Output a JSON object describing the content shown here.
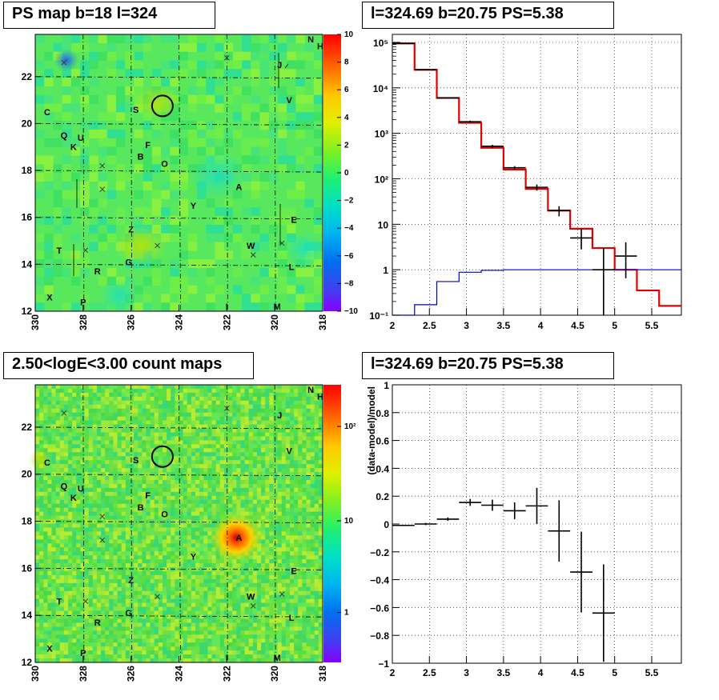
{
  "panels": {
    "tl_title": "PS map b=18 l=324",
    "tr_title": "l=324.69 b=20.75 PS=5.38",
    "bl_title": "2.50<logE<3.00 count maps",
    "br_title": "l=324.69 b=20.75 PS=5.38"
  },
  "chart_data": [
    {
      "type": "heatmap",
      "title": "PS map b=18 l=324",
      "xlim": [
        330,
        318
      ],
      "ylim": [
        12,
        23.8
      ],
      "xticks": [
        "330",
        "328",
        "326",
        "324",
        "322",
        "320",
        "318"
      ],
      "yticks": [
        "12",
        "14",
        "16",
        "18",
        "20",
        "22"
      ],
      "colorbar": {
        "min": -10,
        "max": 10,
        "ticks": [
          "10",
          "8",
          "6",
          "4",
          "2",
          "0",
          "−2",
          "−4",
          "−6",
          "−8",
          "−10"
        ]
      },
      "grid": true,
      "source_labels": [
        {
          "t": "N",
          "l": 318.5,
          "b": 23.6
        },
        {
          "t": "H",
          "l": 318.1,
          "b": 23.3
        },
        {
          "t": "J",
          "l": 319.8,
          "b": 22.5
        },
        {
          "t": "V",
          "l": 319.4,
          "b": 21.0
        },
        {
          "t": "C",
          "l": 329.5,
          "b": 20.5
        },
        {
          "t": "S",
          "l": 325.8,
          "b": 20.6
        },
        {
          "t": "Q",
          "l": 328.8,
          "b": 19.5
        },
        {
          "t": "U",
          "l": 328.1,
          "b": 19.4
        },
        {
          "t": "K",
          "l": 328.4,
          "b": 19.0
        },
        {
          "t": "F",
          "l": 325.3,
          "b": 19.1
        },
        {
          "t": "B",
          "l": 325.6,
          "b": 18.6
        },
        {
          "t": "O",
          "l": 324.6,
          "b": 18.3
        },
        {
          "t": "A",
          "l": 321.5,
          "b": 17.3
        },
        {
          "t": "Y",
          "l": 323.4,
          "b": 16.5
        },
        {
          "t": "E",
          "l": 319.2,
          "b": 15.9
        },
        {
          "t": "Z",
          "l": 326.0,
          "b": 15.5
        },
        {
          "t": "W",
          "l": 321.0,
          "b": 14.8
        },
        {
          "t": "T",
          "l": 329.0,
          "b": 14.6
        },
        {
          "t": "G",
          "l": 326.1,
          "b": 14.1
        },
        {
          "t": "R",
          "l": 327.4,
          "b": 13.7
        },
        {
          "t": "L",
          "l": 319.3,
          "b": 13.9
        },
        {
          "t": "X",
          "l": 329.4,
          "b": 12.6
        },
        {
          "t": "P",
          "l": 328.0,
          "b": 12.4
        },
        {
          "t": "I",
          "l": 322.0,
          "b": 12.2
        },
        {
          "t": "M",
          "l": 319.9,
          "b": 12.2
        }
      ],
      "crosses": [
        {
          "l": 328.8,
          "b": 22.6
        },
        {
          "l": 327.2,
          "b": 18.2
        },
        {
          "l": 327.2,
          "b": 17.2
        },
        {
          "l": 324.9,
          "b": 14.8
        },
        {
          "l": 327.9,
          "b": 14.6
        },
        {
          "l": 319.7,
          "b": 14.9
        },
        {
          "l": 320.9,
          "b": 14.4
        },
        {
          "l": 322.0,
          "b": 22.8
        }
      ],
      "circle": {
        "l": 324.69,
        "b": 20.75
      }
    },
    {
      "type": "line",
      "title": "l=324.69 b=20.75 PS=5.38",
      "ylog": true,
      "xlim": [
        2,
        5.9
      ],
      "ylim": [
        0.1,
        150000
      ],
      "xticks": [
        "2",
        "2.5",
        "3",
        "3.5",
        "4",
        "4.5",
        "5",
        "5.5"
      ],
      "yticks": [
        "10⁻¹",
        "1",
        "10",
        "10²",
        "10³",
        "10⁴",
        "10⁵"
      ],
      "grid": true,
      "bin_edges": [
        2.0,
        2.3,
        2.6,
        2.9,
        3.2,
        3.5,
        3.8,
        4.1,
        4.4,
        4.7,
        5.0,
        5.3,
        5.6,
        5.9
      ],
      "series": [
        {
          "color": "#e00000",
          "values": [
            95000,
            25000,
            6000,
            1700,
            480,
            160,
            60,
            20,
            8,
            3,
            1,
            0.35,
            0.16
          ]
        },
        {
          "color": "#0000c8",
          "values": [
            0.1,
            0.17,
            0.55,
            0.88,
            0.97,
            1.0,
            1.0,
            1.0,
            1.0,
            1.0,
            1.0,
            1.0,
            1.0
          ]
        }
      ],
      "points": [
        {
          "x": 2.15,
          "y": 95000,
          "lo": 95000,
          "hi": 95000
        },
        {
          "x": 2.45,
          "y": 25000,
          "lo": 25000,
          "hi": 25000
        },
        {
          "x": 2.75,
          "y": 6000,
          "lo": 6000,
          "hi": 6000
        },
        {
          "x": 3.05,
          "y": 1800,
          "lo": 1700,
          "hi": 1900
        },
        {
          "x": 3.35,
          "y": 520,
          "lo": 480,
          "hi": 560
        },
        {
          "x": 3.65,
          "y": 175,
          "lo": 160,
          "hi": 190
        },
        {
          "x": 3.95,
          "y": 65,
          "lo": 55,
          "hi": 75
        },
        {
          "x": 4.25,
          "y": 20,
          "lo": 15,
          "hi": 25
        },
        {
          "x": 4.55,
          "y": 5,
          "lo": 2.8,
          "hi": 8
        },
        {
          "x": 4.85,
          "y": 1,
          "lo": 0.1,
          "hi": 3
        },
        {
          "x": 5.15,
          "y": 2,
          "lo": 0.65,
          "hi": 4
        }
      ]
    },
    {
      "type": "heatmap",
      "title": "2.50<logE<3.00 count maps",
      "xlim": [
        330,
        318
      ],
      "ylim": [
        12,
        23.8
      ],
      "xticks": [
        "330",
        "328",
        "326",
        "324",
        "322",
        "320",
        "318"
      ],
      "yticks": [
        "12",
        "14",
        "16",
        "18",
        "20",
        "22"
      ],
      "colorbar": {
        "ticks": [
          "10²",
          "10",
          "1"
        ]
      },
      "grid": true
    },
    {
      "type": "scatter",
      "title": "l=324.69 b=20.75 PS=5.38",
      "ylabel": "(data-model)/model",
      "xlim": [
        2,
        5.9
      ],
      "ylim": [
        -1,
        1
      ],
      "xticks": [
        "2",
        "2.5",
        "3",
        "3.5",
        "4",
        "4.5",
        "5",
        "5.5"
      ],
      "yticks": [
        "1",
        "0.8",
        "0.6",
        "0.4",
        "0.2",
        "0",
        "−0.2",
        "−0.4",
        "−0.6",
        "−0.8",
        "−1"
      ],
      "grid": true,
      "points": [
        {
          "x": 2.15,
          "y": -0.01,
          "err": 0.005
        },
        {
          "x": 2.45,
          "y": 0.0,
          "err": 0.008
        },
        {
          "x": 2.75,
          "y": 0.035,
          "err": 0.012
        },
        {
          "x": 3.05,
          "y": 0.155,
          "err": 0.025
        },
        {
          "x": 3.35,
          "y": 0.135,
          "err": 0.04
        },
        {
          "x": 3.65,
          "y": 0.095,
          "err": 0.06
        },
        {
          "x": 3.95,
          "y": 0.13,
          "err": 0.13
        },
        {
          "x": 4.25,
          "y": -0.05,
          "err": 0.22
        },
        {
          "x": 4.55,
          "y": -0.345,
          "err": 0.29
        },
        {
          "x": 4.85,
          "y": -0.64,
          "err": 0.35
        }
      ]
    }
  ]
}
